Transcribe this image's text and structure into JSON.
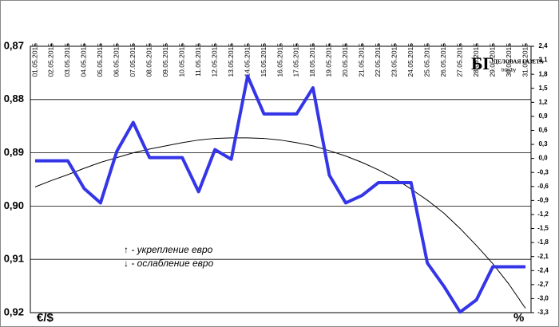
{
  "chart_data": {
    "type": "line",
    "y_label": "€/$",
    "y2_label": "%",
    "annotations": [
      "↑ - укрепление евро",
      "↓ - ослабление евро"
    ],
    "logo": {
      "mark": "БГ",
      "name": "ДЕЛОВАЯ ГАЗЕТА",
      "site": "bdg.by"
    },
    "categories": [
      "01.05.2015",
      "02.05.2015",
      "03.05.2015",
      "04.05.2015",
      "05.05.2015",
      "06.05.2015",
      "07.05.2015",
      "08.05.2015",
      "09.05.2015",
      "10.05.2015",
      "11.05.2015",
      "12.05.2015",
      "13.05.2015",
      "14.05.2015",
      "15.05.2015",
      "16.05.2015",
      "17.05.2015",
      "18.05.2015",
      "19.05.2015",
      "20.05.2015",
      "21.05.2015",
      "22.05.2015",
      "23.05.2015",
      "24.05.2015",
      "25.05.2015",
      "26.05.2015",
      "27.05.2015",
      "28.05.2015",
      "29.05.2015",
      "30.05.2015",
      "31.05.2015"
    ],
    "series": [
      {
        "color": "#3535e8",
        "width": 4,
        "values": [
          0.8915,
          0.8915,
          0.8915,
          0.8967,
          0.8994,
          0.8897,
          0.8843,
          0.8909,
          0.8909,
          0.8909,
          0.8973,
          0.8894,
          0.8912,
          0.8756,
          0.8827,
          0.8827,
          0.8827,
          0.8778,
          0.8942,
          0.8994,
          0.898,
          0.8956,
          0.8956,
          0.8956,
          0.9107,
          0.915,
          0.9199,
          0.9176,
          0.9114,
          0.9114,
          0.9114
        ]
      },
      {
        "color": "#000000",
        "width": 1,
        "values": [
          0.8964,
          0.8952,
          0.8941,
          0.8929,
          0.8918,
          0.8909,
          0.89,
          0.8893,
          0.8887,
          0.8881,
          0.8876,
          0.8873,
          0.8872,
          0.8872,
          0.8873,
          0.8876,
          0.8881,
          0.8887,
          0.8896,
          0.8906,
          0.8918,
          0.8932,
          0.8948,
          0.8968,
          0.8989,
          0.9013,
          0.9042,
          0.9074,
          0.9108,
          0.9147,
          0.9192
        ]
      }
    ],
    "ylim": [
      0.87,
      0.92
    ],
    "y_inverted": true,
    "yticks": [
      {
        "value": 0.87,
        "label": "0,87"
      },
      {
        "value": 0.88,
        "label": "0,88"
      },
      {
        "value": 0.89,
        "label": "0,89"
      },
      {
        "value": 0.9,
        "label": "0,90"
      },
      {
        "value": 0.91,
        "label": "0,91"
      },
      {
        "value": 0.92,
        "label": "0,92"
      }
    ],
    "y2lim": [
      -3.3,
      2.4
    ],
    "y2ticks": [
      {
        "value": 2.4,
        "label": "2,4"
      },
      {
        "value": 2.1,
        "label": "2,1"
      },
      {
        "value": 1.8,
        "label": "1,8"
      },
      {
        "value": 1.5,
        "label": "1,5"
      },
      {
        "value": 1.2,
        "label": "1,2"
      },
      {
        "value": 0.9,
        "label": "0,9"
      },
      {
        "value": 0.6,
        "label": "0,6"
      },
      {
        "value": 0.3,
        "label": "0,3"
      },
      {
        "value": 0,
        "label": "0,0"
      },
      {
        "value": -0.3,
        "label": "-0,3"
      },
      {
        "value": -0.6,
        "label": "-0,6"
      },
      {
        "value": -0.9,
        "label": "-0,9"
      },
      {
        "value": -1.2,
        "label": "-1,2"
      },
      {
        "value": -1.5,
        "label": "-1,5"
      },
      {
        "value": -1.8,
        "label": "-1,8"
      },
      {
        "value": -2.1,
        "label": "-2,1"
      },
      {
        "value": -2.4,
        "label": "-2,4"
      },
      {
        "value": -2.7,
        "label": "-2,7"
      },
      {
        "value": -3.0,
        "label": "-3,0"
      },
      {
        "value": -3.3,
        "label": "-3,3"
      }
    ],
    "grid": true
  }
}
